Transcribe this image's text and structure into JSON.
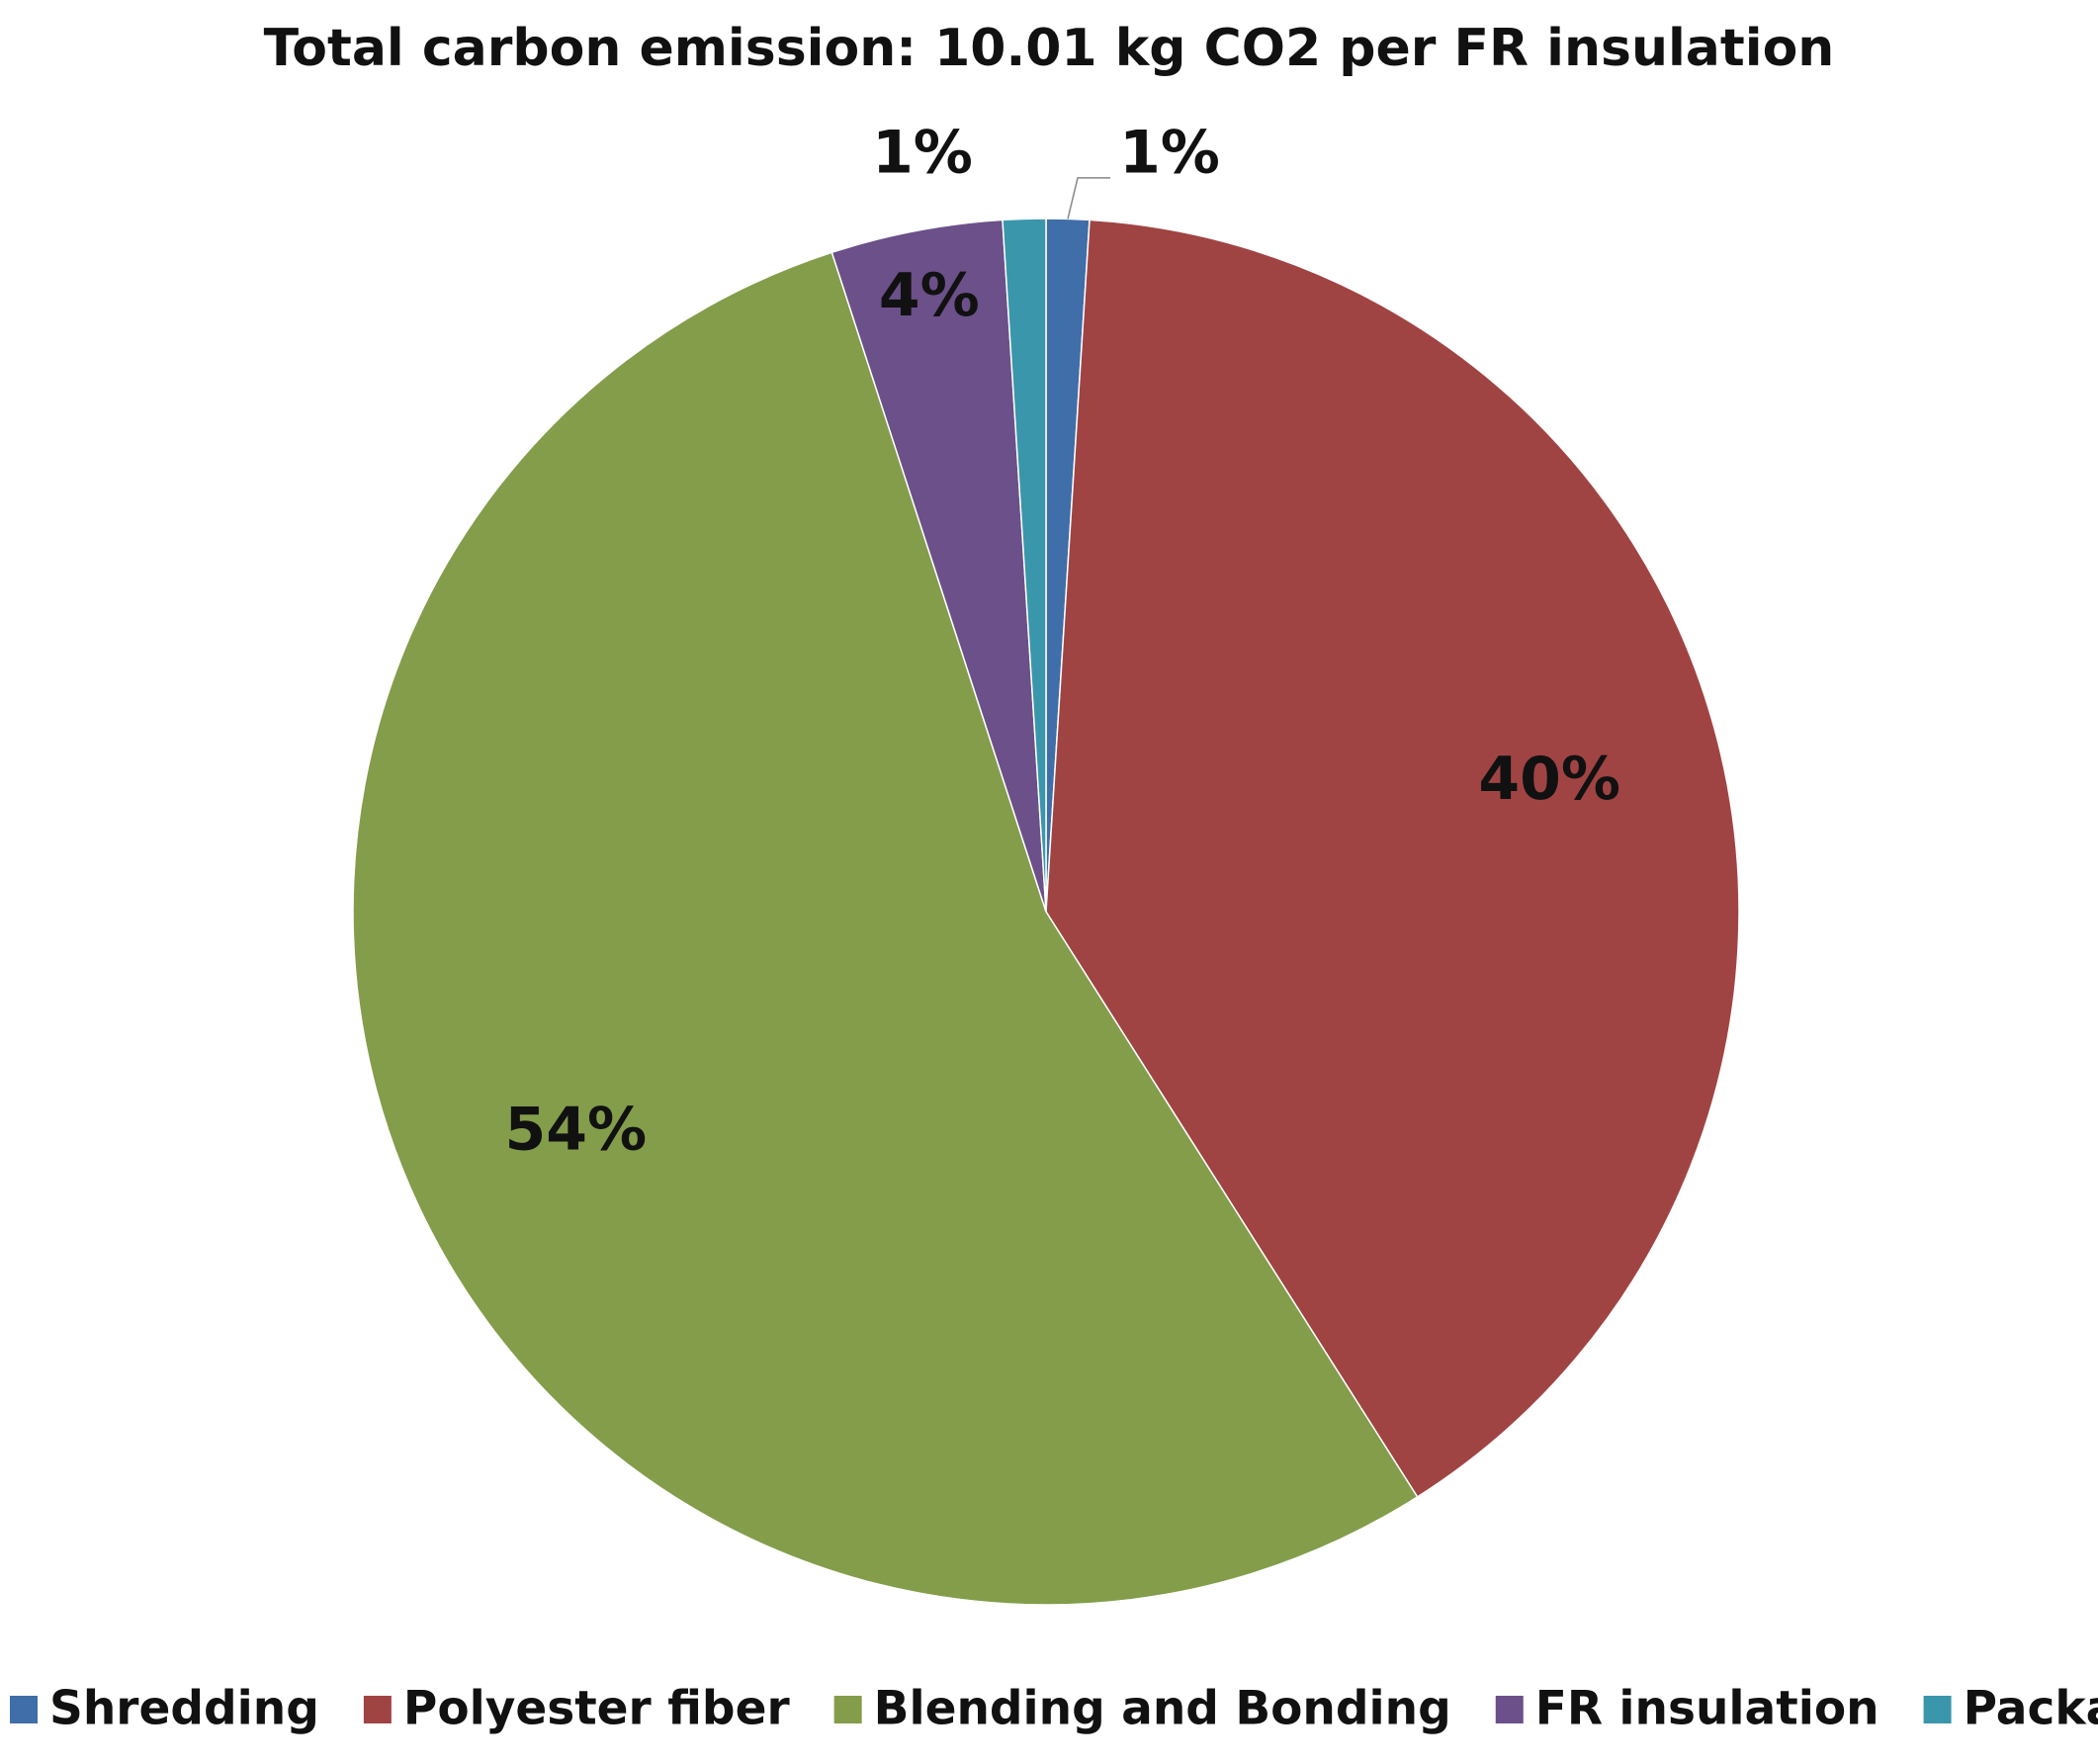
{
  "chart_data": {
    "type": "pie",
    "title": "Total carbon emission: 10.01 kg CO2 per FR insulation",
    "categories": [
      "Shredding",
      "Polyester fiber",
      "Blending and Bonding",
      "FR insulation",
      "Packaging"
    ],
    "values": [
      1,
      40,
      54,
      4,
      1
    ],
    "value_labels": [
      "1%",
      "40%",
      "54%",
      "4%",
      "1%"
    ],
    "colors": [
      "#3f6ea8",
      "#a04443",
      "#839d4b",
      "#6b5089",
      "#3a96ab"
    ],
    "legend": "bottom"
  }
}
